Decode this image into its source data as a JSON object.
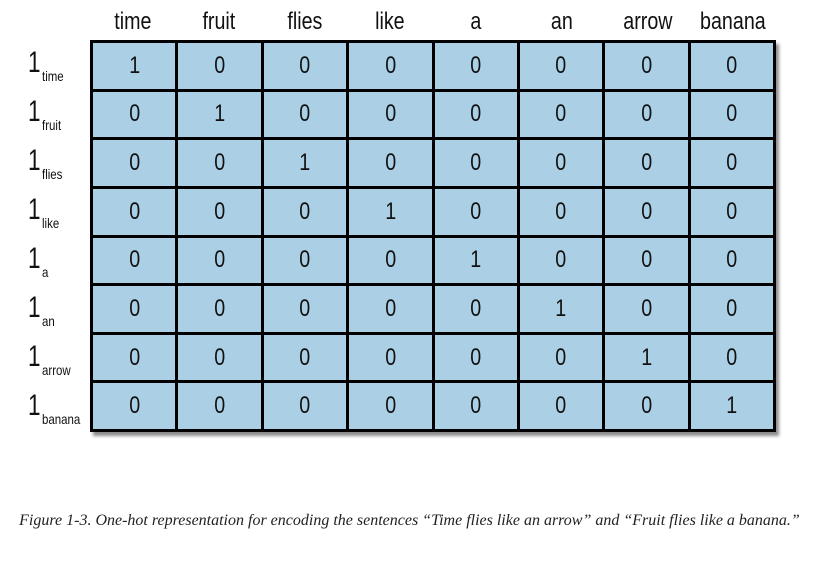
{
  "columns": [
    "time",
    "fruit",
    "flies",
    "like",
    "a",
    "an",
    "arrow",
    "banana"
  ],
  "rows": [
    {
      "symbol": "1",
      "subscript": "time",
      "values": [
        "1",
        "0",
        "0",
        "0",
        "0",
        "0",
        "0",
        "0"
      ]
    },
    {
      "symbol": "1",
      "subscript": "fruit",
      "values": [
        "0",
        "1",
        "0",
        "0",
        "0",
        "0",
        "0",
        "0"
      ]
    },
    {
      "symbol": "1",
      "subscript": "flies",
      "values": [
        "0",
        "0",
        "1",
        "0",
        "0",
        "0",
        "0",
        "0"
      ]
    },
    {
      "symbol": "1",
      "subscript": "like",
      "values": [
        "0",
        "0",
        "0",
        "1",
        "0",
        "0",
        "0",
        "0"
      ]
    },
    {
      "symbol": "1",
      "subscript": "a",
      "values": [
        "0",
        "0",
        "0",
        "0",
        "1",
        "0",
        "0",
        "0"
      ]
    },
    {
      "symbol": "1",
      "subscript": "an",
      "values": [
        "0",
        "0",
        "0",
        "0",
        "0",
        "1",
        "0",
        "0"
      ]
    },
    {
      "symbol": "1",
      "subscript": "arrow",
      "values": [
        "0",
        "0",
        "0",
        "0",
        "0",
        "0",
        "1",
        "0"
      ]
    },
    {
      "symbol": "1",
      "subscript": "banana",
      "values": [
        "0",
        "0",
        "0",
        "0",
        "0",
        "0",
        "0",
        "1"
      ]
    }
  ],
  "caption": "Figure 1-3. One-hot representation for encoding the sentences “Time flies like an arrow” and “Fruit flies like a banana.”",
  "colors": {
    "cell_fill": "#abcfe4",
    "grid_lines": "#000000"
  }
}
